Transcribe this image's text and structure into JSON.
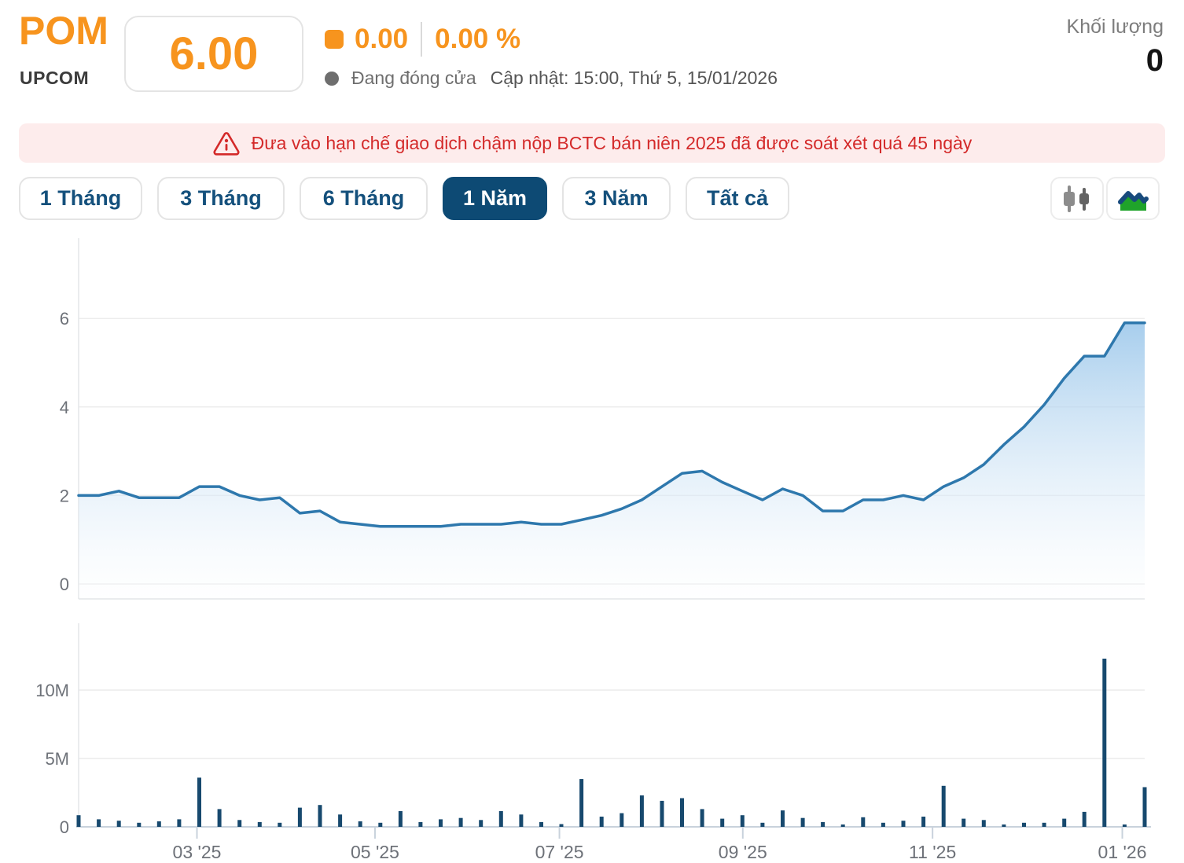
{
  "header": {
    "ticker": "POM",
    "exchange": "UPCOM",
    "price": "6.00",
    "change_value": "0.00",
    "change_percent": "0.00 %",
    "market_status": "Đang đóng cửa",
    "updated": "Cập nhật: 15:00, Thứ 5, 15/01/2026",
    "volume_label": "Khối lượng",
    "volume_value": "0"
  },
  "warning": {
    "text": "Đưa vào hạn chế giao dịch chậm nộp BCTC bán niên 2025 đã được soát xét quá 45 ngày"
  },
  "toolbar": {
    "ranges": [
      {
        "label": "1 Tháng",
        "active": false
      },
      {
        "label": "3 Tháng",
        "active": false
      },
      {
        "label": "6 Tháng",
        "active": false
      },
      {
        "label": "1 Năm",
        "active": true
      },
      {
        "label": "3 Năm",
        "active": false
      },
      {
        "label": "Tất cả",
        "active": false
      }
    ],
    "chart_types": [
      {
        "name": "candlestick",
        "active": false
      },
      {
        "name": "area",
        "active": true
      }
    ]
  },
  "colors": {
    "accent_orange": "#f7941e",
    "active_tab_navy": "#0d4a74",
    "tab_text_navy": "#14507c",
    "price_line_blue": "#2e78ad",
    "area_fill_top": "#8fc0e8",
    "volume_bar_navy": "#17496e",
    "alert_red": "#d42a2a",
    "alert_bg_pink": "#fdecec",
    "status_gray": "#6e6e6e"
  },
  "chart_data": [
    {
      "type": "area",
      "title": "POM price — 1 Năm (weekly closes, thousand VND)",
      "ylabel": "",
      "y_ticks": [
        0,
        2,
        4,
        6
      ],
      "ylim": [
        0,
        7.8
      ],
      "grid": true,
      "legend": false,
      "values": [
        2.0,
        2.0,
        2.1,
        1.95,
        1.95,
        1.95,
        2.2,
        2.2,
        2.0,
        1.9,
        1.95,
        1.6,
        1.65,
        1.4,
        1.35,
        1.3,
        1.3,
        1.3,
        1.3,
        1.35,
        1.35,
        1.35,
        1.4,
        1.35,
        1.35,
        1.45,
        1.55,
        1.7,
        1.9,
        2.2,
        2.5,
        2.55,
        2.3,
        2.1,
        1.9,
        2.15,
        2.0,
        1.65,
        1.65,
        1.9,
        1.9,
        2.0,
        1.9,
        2.2,
        2.4,
        2.7,
        3.15,
        3.55,
        4.05,
        4.65,
        5.15,
        5.15,
        5.9,
        5.9
      ],
      "x_axis_ticks": [
        {
          "label": "03 '25",
          "pos": 0.111
        },
        {
          "label": "05 '25",
          "pos": 0.278
        },
        {
          "label": "07 '25",
          "pos": 0.451
        },
        {
          "label": "09 '25",
          "pos": 0.623
        },
        {
          "label": "11 '25",
          "pos": 0.801
        },
        {
          "label": "01 '26",
          "pos": 0.979
        }
      ]
    },
    {
      "type": "bar",
      "title": "Khối lượng (volume, shares)",
      "y_tick_labels": [
        "0",
        "5M",
        "10M"
      ],
      "y_ticks_millions": [
        0,
        5,
        10
      ],
      "ylim_millions": [
        0,
        14.8
      ],
      "values_millions": [
        0.85,
        0.55,
        0.45,
        0.3,
        0.4,
        0.55,
        3.6,
        1.3,
        0.5,
        0.35,
        0.3,
        1.4,
        1.6,
        0.9,
        0.4,
        0.3,
        1.15,
        0.35,
        0.55,
        0.65,
        0.5,
        1.15,
        0.9,
        0.35,
        0.2,
        3.5,
        0.75,
        1.0,
        2.3,
        1.9,
        2.1,
        1.3,
        0.6,
        0.85,
        0.3,
        1.2,
        0.65,
        0.35,
        0.15,
        0.7,
        0.3,
        0.45,
        0.75,
        3.0,
        0.6,
        0.5,
        0.15,
        0.3,
        0.3,
        0.6,
        1.1,
        12.3,
        0.1,
        2.9
      ]
    }
  ]
}
